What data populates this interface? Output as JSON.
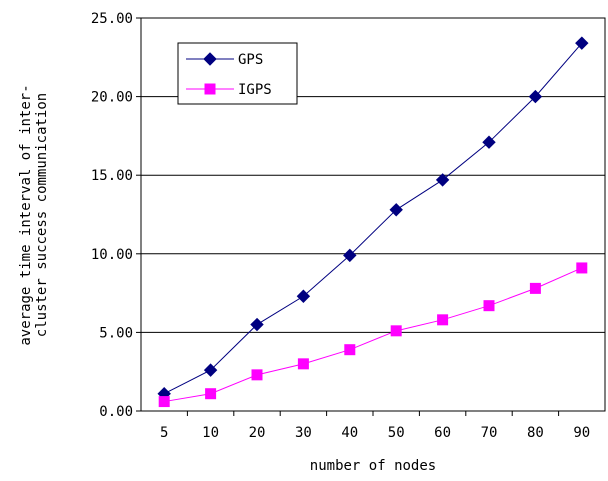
{
  "chart_data": {
    "type": "line",
    "title": "",
    "xlabel": "number of nodes",
    "ylabel_lines": [
      "average time interval of inter-",
      "cluster success communication"
    ],
    "categories": [
      "5",
      "10",
      "20",
      "30",
      "40",
      "50",
      "60",
      "70",
      "80",
      "90"
    ],
    "ylim": [
      0,
      25
    ],
    "yticks": [
      0,
      5,
      10,
      15,
      20,
      25
    ],
    "ytick_labels": [
      "0.00",
      "5.00",
      "10.00",
      "15.00",
      "20.00",
      "25.00"
    ],
    "grid": "horizontal",
    "legend_position": "top-left",
    "series": [
      {
        "name": "GPS",
        "color": "#000080",
        "marker": "diamond",
        "values": [
          1.1,
          2.6,
          5.5,
          7.3,
          9.9,
          12.8,
          14.7,
          17.1,
          20.0,
          23.4
        ]
      },
      {
        "name": "IGPS",
        "color": "#ff00ff",
        "marker": "square",
        "values": [
          0.6,
          1.1,
          2.3,
          3.0,
          3.9,
          5.1,
          5.8,
          6.7,
          7.8,
          9.1
        ]
      }
    ]
  }
}
